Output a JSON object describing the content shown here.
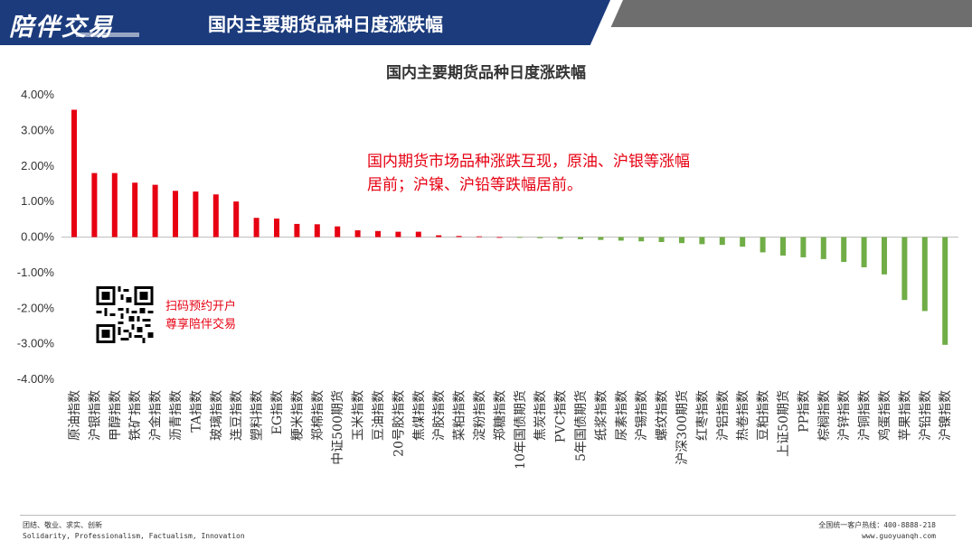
{
  "header": {
    "logo": "陪伴交易",
    "title": "国内主要期货品种日度涨跌幅"
  },
  "annotation_lines": [
    "国内期货市场品种涨跌互现，原油、沪银等涨幅",
    "居前；沪镍、沪铅等跌幅居前。"
  ],
  "qr_caption": [
    "扫码预约开户",
    "尊享陪伴交易"
  ],
  "footer": {
    "left_line1": "团结、敬业、求实、创新",
    "left_line2": "Solidarity, Professionalism, Factualism, Innovation",
    "right_line1": "全国统一客户热线：400-8888-218",
    "right_line2": "www.guoyuanqh.com"
  },
  "colors": {
    "header_blue": "#1b3b7c",
    "positive": "#e60012",
    "negative": "#70ad47"
  },
  "chart_data": {
    "type": "bar",
    "title": "国内主要期货品种日度涨跌幅",
    "ylim": [
      -4.0,
      4.0
    ],
    "yticks": [
      4.0,
      3.0,
      2.0,
      1.0,
      0.0,
      -1.0,
      -2.0,
      -3.0,
      -4.0
    ],
    "ytick_labels": [
      "4.00%",
      "3.00%",
      "2.00%",
      "1.00%",
      "0.00%",
      "-1.00%",
      "-2.00%",
      "-3.00%",
      "-4.00%"
    ],
    "categories": [
      "原油指数",
      "沪银指数",
      "甲醇指数",
      "铁矿指数",
      "沪金指数",
      "沥青指数",
      "TA指数",
      "玻璃指数",
      "连豆指数",
      "塑料指数",
      "EG指数",
      "粳米指数",
      "郑棉指数",
      "中证500期货",
      "玉米指数",
      "豆油指数",
      "20号胶指数",
      "焦煤指数",
      "沪胶指数",
      "菜粕指数",
      "淀粉指数",
      "郑糖指数",
      "10年国债期货",
      "焦炭指数",
      "PVC指数",
      "5年国债期货",
      "纸浆指数",
      "尿素指数",
      "沪锡指数",
      "螺纹指数",
      "沪深300期货",
      "红枣指数",
      "沪铝指数",
      "热卷指数",
      "豆粕指数",
      "上证50期货",
      "PP指数",
      "棕榈指数",
      "沪锌指数",
      "沪铜指数",
      "鸡蛋指数",
      "苹果指数",
      "沪铅指数",
      "沪镍指数"
    ],
    "values": [
      3.58,
      1.8,
      1.8,
      1.53,
      1.47,
      1.3,
      1.28,
      1.2,
      1.0,
      0.54,
      0.52,
      0.37,
      0.36,
      0.3,
      0.19,
      0.17,
      0.15,
      0.15,
      0.05,
      0.03,
      0.02,
      0.0,
      -0.02,
      -0.03,
      -0.05,
      -0.06,
      -0.08,
      -0.1,
      -0.12,
      -0.14,
      -0.17,
      -0.2,
      -0.22,
      -0.27,
      -0.43,
      -0.52,
      -0.57,
      -0.62,
      -0.7,
      -0.85,
      -1.05,
      -1.77,
      -2.08,
      -3.03
    ],
    "grid": false,
    "legend": "none"
  }
}
